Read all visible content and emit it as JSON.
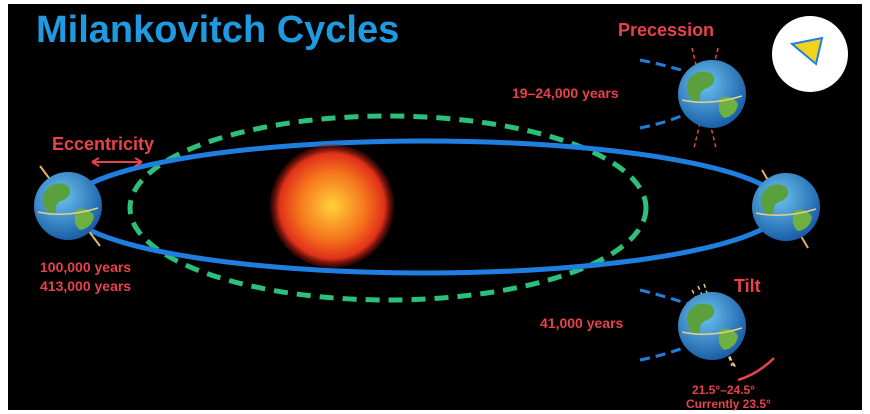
{
  "title": "Milankovitch Cycles",
  "cycles": [
    {
      "name": "Eccentricity",
      "periods": [
        "100,000 years",
        "413,000 years"
      ]
    },
    {
      "name": "Precession",
      "periods": [
        "19–24,000 years"
      ]
    },
    {
      "name": "Tilt",
      "periods": [
        "41,000 years"
      ],
      "range": "21.5°–24.5°",
      "current": "Currently 23.5°"
    }
  ]
}
